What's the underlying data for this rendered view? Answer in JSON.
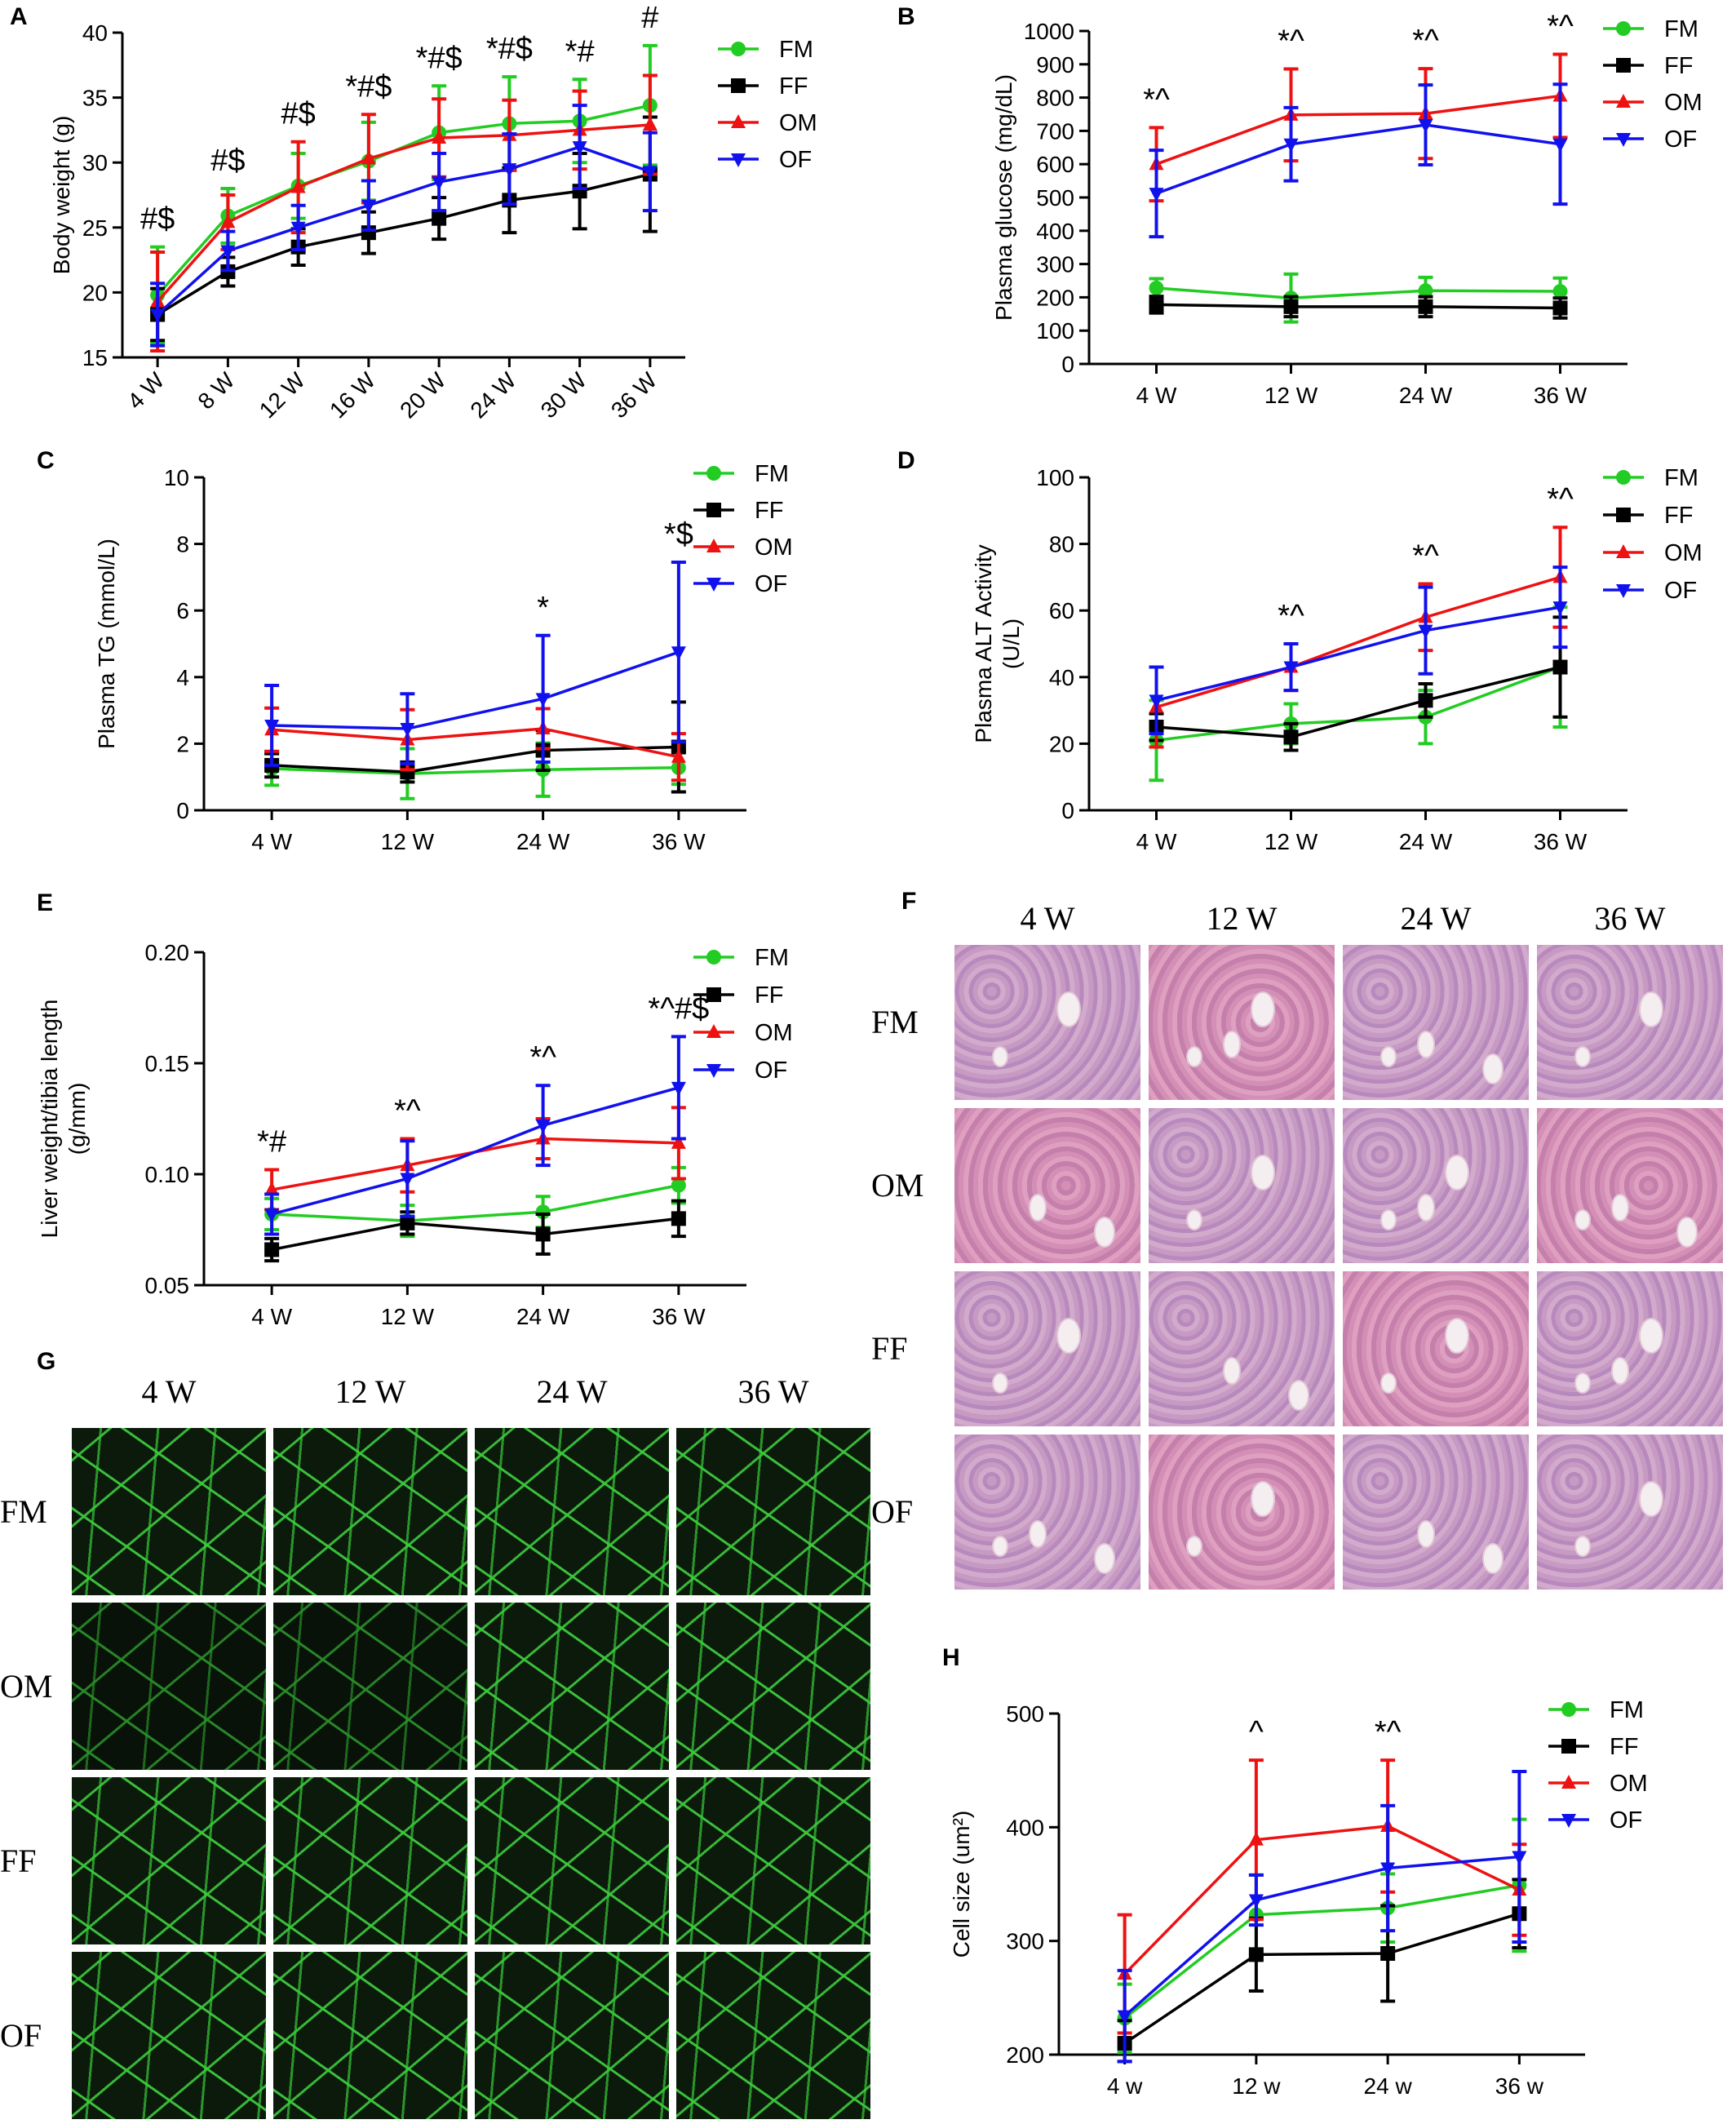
{
  "series_styles": {
    "FM": {
      "color": "#22cc22",
      "marker": "circle"
    },
    "FF": {
      "color": "#000000",
      "marker": "square"
    },
    "OM": {
      "color": "#ee1111",
      "marker": "triangle-up"
    },
    "OF": {
      "color": "#1111ee",
      "marker": "triangle-down"
    }
  },
  "chart_data": [
    {
      "panel": "A",
      "type": "line",
      "title": "",
      "ylabel": "Body weight (g)",
      "xlabel": "",
      "categories": [
        "4 W",
        "8 W",
        "12 W",
        "16 W",
        "20 W",
        "24 W",
        "30 W",
        "36 W"
      ],
      "x_tick_rotation": -45,
      "ylim": [
        15,
        40
      ],
      "yticks": [
        15,
        20,
        25,
        30,
        35,
        40
      ],
      "series": [
        {
          "name": "FM",
          "values": [
            19.8,
            25.9,
            28.2,
            30.1,
            32.3,
            33.0,
            33.2,
            34.4
          ],
          "errors": [
            3.7,
            2.1,
            2.5,
            3.0,
            3.6,
            3.6,
            3.2,
            4.6
          ]
        },
        {
          "name": "FF",
          "values": [
            18.3,
            21.6,
            23.5,
            24.6,
            25.7,
            27.1,
            27.8,
            29.1
          ],
          "errors": [
            2.0,
            1.1,
            1.4,
            1.6,
            1.6,
            2.5,
            2.9,
            4.4
          ]
        },
        {
          "name": "OM",
          "values": [
            19.3,
            25.4,
            28.1,
            30.3,
            31.9,
            32.1,
            32.5,
            32.9
          ],
          "errors": [
            3.8,
            2.1,
            3.5,
            3.4,
            3.0,
            2.7,
            3.0,
            3.8
          ]
        },
        {
          "name": "OF",
          "values": [
            18.3,
            23.2,
            25.0,
            26.7,
            28.5,
            29.5,
            31.2,
            29.3
          ],
          "errors": [
            2.4,
            1.5,
            1.7,
            1.9,
            2.2,
            2.7,
            3.2,
            3.0
          ]
        }
      ],
      "annotations": [
        {
          "x": "4 W",
          "text": "#$"
        },
        {
          "x": "8 W",
          "text": "#$"
        },
        {
          "x": "12 W",
          "text": "#$"
        },
        {
          "x": "16 W",
          "text": "*#$"
        },
        {
          "x": "20 W",
          "text": "*#$"
        },
        {
          "x": "24 W",
          "text": "*#$"
        },
        {
          "x": "30 W",
          "text": "*#"
        },
        {
          "x": "36 W",
          "text": "#"
        }
      ],
      "legend": [
        "FM",
        "FF",
        "OM",
        "OF"
      ],
      "legend_position": "right"
    },
    {
      "panel": "B",
      "type": "line",
      "title": "",
      "ylabel": "Plasma glucose (mg/dL)",
      "xlabel": "",
      "categories": [
        "4 W",
        "12 W",
        "24 W",
        "36 W"
      ],
      "ylim": [
        0,
        1000
      ],
      "yticks": [
        0,
        100,
        200,
        300,
        400,
        500,
        600,
        700,
        800,
        900,
        1000
      ],
      "series": [
        {
          "name": "FM",
          "values": [
            228,
            198,
            220,
            218
          ],
          "errors": [
            28,
            72,
            40,
            40
          ]
        },
        {
          "name": "FF",
          "values": [
            178,
            172,
            172,
            168
          ],
          "errors": [
            25,
            30,
            30,
            30
          ]
        },
        {
          "name": "OM",
          "values": [
            600,
            748,
            752,
            805
          ],
          "errors": [
            110,
            138,
            135,
            125
          ]
        },
        {
          "name": "OF",
          "values": [
            512,
            660,
            718,
            660
          ],
          "errors": [
            130,
            110,
            120,
            180
          ]
        }
      ],
      "annotations": [
        {
          "x": "4 W",
          "text": "*^"
        },
        {
          "x": "12 W",
          "text": "*^"
        },
        {
          "x": "24 W",
          "text": "*^"
        },
        {
          "x": "36 W",
          "text": "*^"
        }
      ],
      "legend": [
        "FM",
        "FF",
        "OM",
        "OF"
      ],
      "legend_position": "right"
    },
    {
      "panel": "C",
      "type": "line",
      "title": "",
      "ylabel": "Plasma TG (mmol/L)",
      "xlabel": "",
      "categories": [
        "4 W",
        "12 W",
        "24 W",
        "36 W"
      ],
      "ylim": [
        0,
        10
      ],
      "yticks": [
        0,
        2,
        4,
        6,
        8,
        10
      ],
      "series": [
        {
          "name": "FM",
          "values": [
            1.25,
            1.1,
            1.22,
            1.28
          ],
          "errors": [
            0.5,
            0.75,
            0.8,
            0.5
          ]
        },
        {
          "name": "FF",
          "values": [
            1.35,
            1.15,
            1.8,
            1.9
          ],
          "errors": [
            0.35,
            0.3,
            0.6,
            1.35
          ]
        },
        {
          "name": "OM",
          "values": [
            2.42,
            2.12,
            2.45,
            1.6
          ],
          "errors": [
            0.65,
            0.9,
            0.6,
            0.7
          ]
        },
        {
          "name": "OF",
          "values": [
            2.55,
            2.45,
            3.35,
            4.75
          ],
          "errors": [
            1.2,
            1.05,
            1.9,
            2.7
          ]
        }
      ],
      "annotations": [
        {
          "x": "24 W",
          "text": "*"
        },
        {
          "x": "36 W",
          "text": "*$"
        }
      ],
      "legend": [
        "FM",
        "FF",
        "OM",
        "OF"
      ],
      "legend_position": "right"
    },
    {
      "panel": "D",
      "type": "line",
      "title": "",
      "ylabel": "Plasma ALT Activity (U/L)",
      "xlabel": "",
      "categories": [
        "4 W",
        "12 W",
        "24 W",
        "36 W"
      ],
      "ylim": [
        0,
        100
      ],
      "yticks": [
        0,
        20,
        40,
        60,
        80,
        100
      ],
      "series": [
        {
          "name": "FM",
          "values": [
            21,
            26,
            28,
            43
          ],
          "errors": [
            12,
            6,
            8,
            18
          ]
        },
        {
          "name": "FF",
          "values": [
            25,
            22,
            33,
            43
          ],
          "errors": [
            4,
            4,
            5,
            15
          ]
        },
        {
          "name": "OM",
          "values": [
            31,
            43,
            58,
            70
          ],
          "errors": [
            12,
            7,
            10,
            15
          ]
        },
        {
          "name": "OF",
          "values": [
            33,
            43,
            54,
            61
          ],
          "errors": [
            10,
            7,
            13,
            12
          ]
        }
      ],
      "annotations": [
        {
          "x": "12 W",
          "text": "*^"
        },
        {
          "x": "24 W",
          "text": "*^"
        },
        {
          "x": "36 W",
          "text": "*^"
        }
      ],
      "legend": [
        "FM",
        "FF",
        "OM",
        "OF"
      ],
      "legend_position": "right"
    },
    {
      "panel": "E",
      "type": "line",
      "title": "",
      "ylabel": "Liver weight/tibia length (g/mm)",
      "xlabel": "",
      "categories": [
        "4 W",
        "12 W",
        "24 W",
        "36 W"
      ],
      "ylim": [
        0.05,
        0.2
      ],
      "yticks": [
        0.05,
        0.1,
        0.15,
        0.2
      ],
      "ytick_labels": [
        "0.05",
        "0.10",
        "0.15",
        "0.20"
      ],
      "series": [
        {
          "name": "FM",
          "values": [
            0.082,
            0.079,
            0.083,
            0.095
          ],
          "errors": [
            0.007,
            0.007,
            0.007,
            0.008
          ]
        },
        {
          "name": "FF",
          "values": [
            0.066,
            0.078,
            0.073,
            0.08
          ],
          "errors": [
            0.005,
            0.005,
            0.009,
            0.008
          ]
        },
        {
          "name": "OM",
          "values": [
            0.093,
            0.104,
            0.116,
            0.114
          ],
          "errors": [
            0.009,
            0.012,
            0.009,
            0.016
          ]
        },
        {
          "name": "OF",
          "values": [
            0.082,
            0.098,
            0.122,
            0.139
          ],
          "errors": [
            0.009,
            0.017,
            0.018,
            0.023
          ]
        }
      ],
      "annotations": [
        {
          "x": "4 W",
          "text": "*#"
        },
        {
          "x": "12 W",
          "text": "*^"
        },
        {
          "x": "24 W",
          "text": "*^"
        },
        {
          "x": "36 W",
          "text": "*^#$"
        }
      ],
      "legend": [
        "FM",
        "FF",
        "OM",
        "OF"
      ],
      "legend_position": "right"
    },
    {
      "panel": "H",
      "type": "line",
      "title": "",
      "ylabel": "Cell size (um²)",
      "xlabel": "",
      "categories": [
        "4 w",
        "12 w",
        "24 w",
        "36 w"
      ],
      "ylim": [
        200,
        500
      ],
      "yticks": [
        200,
        300,
        400,
        500
      ],
      "series": [
        {
          "name": "FM",
          "values": [
            232,
            323,
            329,
            349
          ],
          "errors": [
            30,
            35,
            30,
            58
          ]
        },
        {
          "name": "FF",
          "values": [
            210,
            288,
            289,
            324
          ],
          "errors": [
            20,
            32,
            42,
            30
          ]
        },
        {
          "name": "OM",
          "values": [
            271,
            389,
            401,
            345
          ],
          "errors": [
            52,
            70,
            58,
            40
          ]
        },
        {
          "name": "OF",
          "values": [
            234,
            336,
            364,
            374
          ],
          "errors": [
            40,
            22,
            55,
            75
          ]
        }
      ],
      "annotations": [
        {
          "x": "12 w",
          "text": "^"
        },
        {
          "x": "24 w",
          "text": "*^"
        }
      ],
      "legend": [
        "FM",
        "FF",
        "OM",
        "OF"
      ],
      "legend_position": "right"
    }
  ],
  "panels": {
    "A": {
      "letter": "A"
    },
    "B": {
      "letter": "B"
    },
    "C": {
      "letter": "C"
    },
    "D": {
      "letter": "D"
    },
    "E": {
      "letter": "E"
    },
    "F": {
      "letter": "F"
    },
    "G": {
      "letter": "G"
    },
    "H": {
      "letter": "H"
    }
  },
  "histology_F": {
    "columns": [
      "4 W",
      "12 W",
      "24 W",
      "36 W"
    ],
    "rows": [
      "FM",
      "OM",
      "FF",
      "OF"
    ],
    "stain_colors": [
      "#c295c2",
      "#d28fb8"
    ]
  },
  "histology_G": {
    "columns": [
      "4 W",
      "12 W",
      "24 W",
      "36 W"
    ],
    "rows": [
      "FM",
      "OM",
      "FF",
      "OF"
    ],
    "stain_color": "#3cc83c"
  }
}
